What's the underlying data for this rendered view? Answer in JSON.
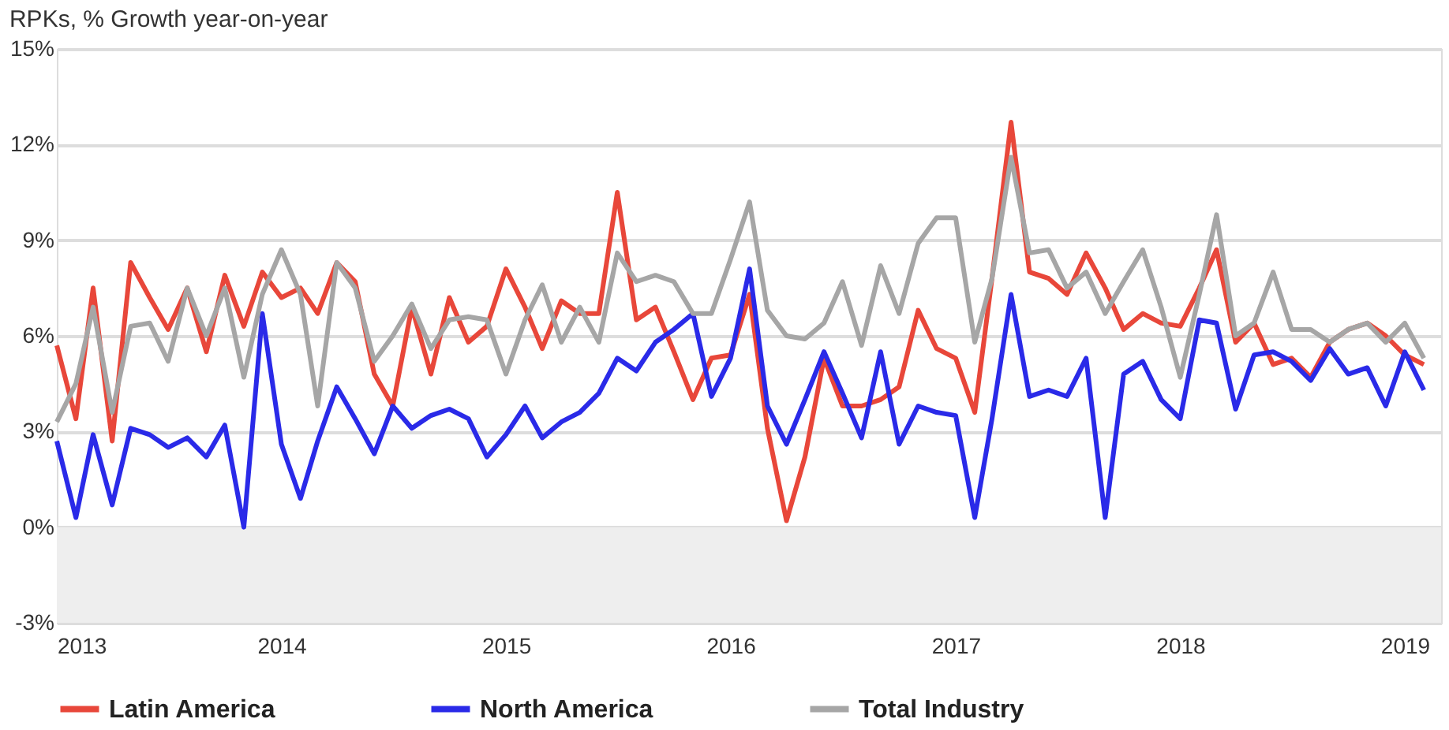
{
  "chart_data": {
    "type": "line",
    "title": "RPKs, % Growth year-on-year",
    "x": [
      "2013-01",
      "2013-02",
      "2013-03",
      "2013-04",
      "2013-05",
      "2013-06",
      "2013-07",
      "2013-08",
      "2013-09",
      "2013-10",
      "2013-11",
      "2013-12",
      "2014-01",
      "2014-02",
      "2014-03",
      "2014-04",
      "2014-05",
      "2014-06",
      "2014-07",
      "2014-08",
      "2014-09",
      "2014-10",
      "2014-11",
      "2014-12",
      "2015-01",
      "2015-02",
      "2015-03",
      "2015-04",
      "2015-05",
      "2015-06",
      "2015-07",
      "2015-08",
      "2015-09",
      "2015-10",
      "2015-11",
      "2015-12",
      "2016-01",
      "2016-02",
      "2016-03",
      "2016-04",
      "2016-05",
      "2016-06",
      "2016-07",
      "2016-08",
      "2016-09",
      "2016-10",
      "2016-11",
      "2016-12",
      "2017-01",
      "2017-02",
      "2017-03",
      "2017-04",
      "2017-05",
      "2017-06",
      "2017-07",
      "2017-08",
      "2017-09",
      "2017-10",
      "2017-11",
      "2017-12",
      "2018-01",
      "2018-02",
      "2018-03",
      "2018-04",
      "2018-05",
      "2018-06",
      "2018-07",
      "2018-08",
      "2018-09",
      "2018-10",
      "2018-11",
      "2018-12",
      "2019-01",
      "2019-02"
    ],
    "series": [
      {
        "name": "Latin America",
        "color": "#e8473a",
        "values": [
          5.7,
          3.4,
          7.5,
          2.7,
          8.3,
          7.2,
          6.2,
          7.5,
          5.5,
          7.9,
          6.3,
          8.0,
          7.2,
          7.5,
          6.7,
          8.3,
          7.7,
          4.8,
          3.8,
          6.9,
          4.8,
          7.2,
          5.8,
          6.3,
          8.1,
          6.9,
          5.6,
          7.1,
          6.7,
          6.7,
          10.5,
          6.5,
          6.9,
          5.5,
          4.0,
          5.3,
          5.4,
          7.3,
          3.1,
          0.2,
          2.2,
          5.3,
          3.8,
          3.8,
          4.0,
          4.4,
          6.8,
          5.6,
          5.3,
          3.6,
          7.8,
          12.7,
          8.0,
          7.8,
          7.3,
          8.6,
          7.5,
          6.2,
          6.7,
          6.4,
          6.3,
          7.5,
          8.7,
          5.8,
          6.4,
          5.1,
          5.3,
          4.7,
          5.8,
          6.2,
          6.4,
          6.0,
          5.4,
          5.1
        ]
      },
      {
        "name": "North America",
        "color": "#2a2ae8",
        "values": [
          2.7,
          0.3,
          2.9,
          0.7,
          3.1,
          2.9,
          2.5,
          2.8,
          2.2,
          3.2,
          0.0,
          6.7,
          2.6,
          0.9,
          2.7,
          4.4,
          3.4,
          2.3,
          3.8,
          3.1,
          3.5,
          3.7,
          3.4,
          2.2,
          2.9,
          3.8,
          2.8,
          3.3,
          3.6,
          4.2,
          5.3,
          4.9,
          5.8,
          6.2,
          6.7,
          4.1,
          5.3,
          8.1,
          3.8,
          2.6,
          4.0,
          5.5,
          4.2,
          2.8,
          5.5,
          2.6,
          3.8,
          3.6,
          3.5,
          0.3,
          3.4,
          7.3,
          4.1,
          4.3,
          4.1,
          5.3,
          0.3,
          4.8,
          5.2,
          4.0,
          3.4,
          6.5,
          6.4,
          3.7,
          5.4,
          5.5,
          5.2,
          4.6,
          5.6,
          4.8,
          5.0,
          3.8,
          5.5,
          4.3
        ]
      },
      {
        "name": "Total Industry",
        "color": "#a6a6a6",
        "values": [
          3.3,
          4.5,
          6.9,
          3.6,
          6.3,
          6.4,
          5.2,
          7.5,
          6.0,
          7.5,
          4.7,
          7.3,
          8.7,
          7.3,
          3.8,
          8.3,
          7.5,
          5.2,
          6.0,
          7.0,
          5.6,
          6.5,
          6.6,
          6.5,
          4.8,
          6.5,
          7.6,
          5.8,
          6.9,
          5.8,
          8.6,
          7.7,
          7.9,
          7.7,
          6.7,
          6.7,
          8.4,
          10.2,
          6.8,
          6.0,
          5.9,
          6.4,
          7.7,
          5.7,
          8.2,
          6.7,
          8.9,
          9.7,
          9.7,
          5.8,
          7.8,
          11.6,
          8.6,
          8.7,
          7.5,
          8.0,
          6.7,
          7.7,
          8.7,
          6.9,
          4.7,
          7.3,
          9.8,
          6.0,
          6.4,
          8.0,
          6.2,
          6.2,
          5.8,
          6.2,
          6.4,
          5.8,
          6.4,
          5.3
        ]
      }
    ],
    "xlim": [
      "2013-01",
      "2019-03"
    ],
    "xticks": [
      "2013",
      "2014",
      "2015",
      "2016",
      "2017",
      "2018",
      "2019"
    ],
    "ylim": [
      -3,
      15
    ],
    "yticks": [
      {
        "value": -3,
        "label": "-3%"
      },
      {
        "value": 0,
        "label": "0%"
      },
      {
        "value": 3,
        "label": "3%"
      },
      {
        "value": 6,
        "label": "6%"
      },
      {
        "value": 9,
        "label": "9%"
      },
      {
        "value": 12,
        "label": "12%"
      },
      {
        "value": 15,
        "label": "15%"
      }
    ],
    "bands": [
      {
        "axis": "y",
        "from": -3,
        "to": 0,
        "color": "#eeeeee"
      }
    ],
    "grid": "y",
    "legend": "bottom",
    "line_style": "solid",
    "marker": "none"
  }
}
